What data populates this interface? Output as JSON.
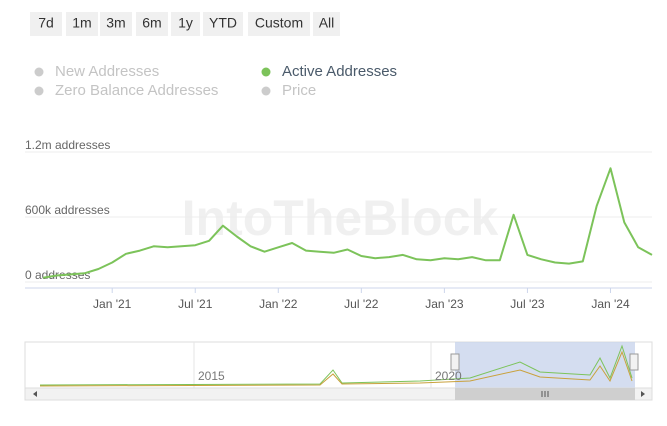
{
  "chart_data": {
    "type": "line",
    "range_buttons": [
      "7d",
      "1m",
      "3m",
      "6m",
      "1y",
      "YTD",
      "Custom",
      "All"
    ],
    "hidden_series": [
      "New Addresses",
      "Zero Balance Addresses",
      "Price"
    ],
    "watermark": "IntoTheBlock",
    "navigator_labels": [
      "2015",
      "2020"
    ],
    "x": [
      "2020-08",
      "2020-09",
      "2020-10",
      "2020-11",
      "2020-12",
      "2021-01",
      "2021-02",
      "2021-03",
      "2021-04",
      "2021-05",
      "2021-06",
      "2021-07",
      "2021-08",
      "2021-09",
      "2021-10",
      "2021-11",
      "2021-12",
      "2022-01",
      "2022-02",
      "2022-03",
      "2022-04",
      "2022-05",
      "2022-06",
      "2022-07",
      "2022-08",
      "2022-09",
      "2022-10",
      "2022-11",
      "2022-12",
      "2023-01",
      "2023-02",
      "2023-03",
      "2023-04",
      "2023-05",
      "2023-06",
      "2023-07",
      "2023-08",
      "2023-09",
      "2023-10",
      "2023-11",
      "2023-12",
      "2024-01",
      "2024-02",
      "2024-03",
      "2024-04"
    ],
    "series": [
      {
        "name": "Active Addresses",
        "color": "#7cc35a",
        "values": [
          40000,
          60000,
          70000,
          80000,
          120000,
          180000,
          260000,
          290000,
          330000,
          320000,
          330000,
          340000,
          380000,
          520000,
          420000,
          330000,
          280000,
          320000,
          360000,
          290000,
          280000,
          270000,
          300000,
          240000,
          220000,
          230000,
          250000,
          210000,
          200000,
          220000,
          210000,
          230000,
          200000,
          200000,
          620000,
          250000,
          210000,
          180000,
          170000,
          190000,
          700000,
          1050000,
          550000,
          320000,
          250000
        ]
      }
    ],
    "xlim": [
      "2020-08",
      "2024-04"
    ],
    "xticks": [
      {
        "value": "2021-01",
        "label": "Jan '21"
      },
      {
        "value": "2021-07",
        "label": "Jul '21"
      },
      {
        "value": "2022-01",
        "label": "Jan '22"
      },
      {
        "value": "2022-07",
        "label": "Jul '22"
      },
      {
        "value": "2023-01",
        "label": "Jan '23"
      },
      {
        "value": "2023-07",
        "label": "Jul '23"
      },
      {
        "value": "2024-01",
        "label": "Jan '24"
      }
    ],
    "ylim": [
      0,
      1200000
    ],
    "yticks": [
      {
        "value": 0,
        "label": "0 addresses"
      },
      {
        "value": 600000,
        "label": "600k addresses"
      },
      {
        "value": 1200000,
        "label": "1.2m addresses"
      }
    ],
    "grid": true
  }
}
